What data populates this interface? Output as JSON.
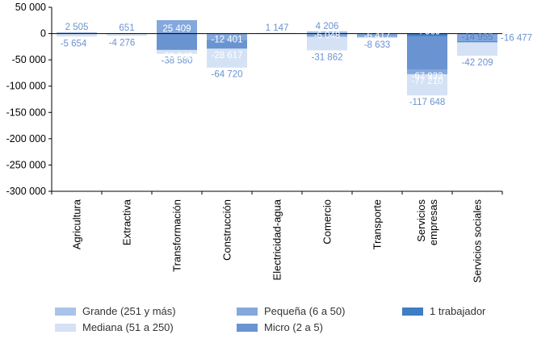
{
  "chart_data": {
    "type": "bar",
    "title": "",
    "xlabel": "",
    "ylabel": "",
    "ylim": [
      -300000,
      50000
    ],
    "yticks": [
      50000,
      0,
      -50000,
      -100000,
      -150000,
      -200000,
      -250000,
      -300000
    ],
    "ytick_labels": [
      "50 000",
      "0",
      "-50 000",
      "-100 000",
      "-150 000",
      "-200 000",
      "-250 000",
      "-300 000"
    ],
    "categories": [
      {
        "label": "Agricultura"
      },
      {
        "label": "Extractiva"
      },
      {
        "label": "Transformación"
      },
      {
        "label": "Construcción"
      },
      {
        "label": "Electricidad-agua"
      },
      {
        "label": "Comercio"
      },
      {
        "label": "Transporte"
      },
      {
        "label": "Servicios empresas",
        "lines": [
          "Servicios",
          "empresas"
        ]
      },
      {
        "label": "Servicios sociales"
      }
    ],
    "series": [
      {
        "name": "Grande (251 y más)",
        "color": "#a9c4e8",
        "values": [
          2505,
          651,
          null,
          null,
          null,
          4206,
          null,
          null,
          null
        ],
        "labels": [
          "2 505",
          "651",
          "",
          "",
          "",
          "4 206",
          "",
          "",
          ""
        ]
      },
      {
        "name": "Mediana (51 a 250)",
        "color": "#d5e2f5",
        "values": [
          -5654,
          -4276,
          -38580,
          -64720,
          1147,
          -31862,
          -8633,
          -117648,
          -42209
        ],
        "labels": [
          "-5 654",
          "-4 276",
          "-38 580",
          "-64 720",
          "1 147",
          "-31 862",
          "-8 633",
          "-117 648",
          "-42 209"
        ]
      },
      {
        "name": "Pequeña (6 a 50)",
        "color": "#84a8dc",
        "values": [
          null,
          null,
          25409,
          -12401,
          null,
          -6048,
          -6417,
          -77210,
          -14955
        ],
        "labels": [
          "",
          "",
          "25 409",
          "-12 401",
          "",
          "-6 048",
          "-6 417",
          "-77 210",
          "-14 955"
        ]
      },
      {
        "name": "Micro (2 a 5)",
        "color": "#6a93d2",
        "values": [
          null,
          null,
          -30942,
          -28617,
          null,
          null,
          null,
          -67933,
          null
        ],
        "labels": [
          "",
          "",
          "-30 942",
          "-28 617",
          "",
          "",
          "",
          "-67 933",
          ""
        ]
      },
      {
        "name": "1 trabajador",
        "color": "#3f7dc4",
        "values": [
          null,
          null,
          null,
          null,
          null,
          null,
          null,
          -4569,
          -16477
        ],
        "labels": [
          "",
          "",
          "",
          "",
          "",
          "",
          "",
          "-4 569",
          "-16 477"
        ]
      }
    ],
    "legend_position": "bottom"
  }
}
